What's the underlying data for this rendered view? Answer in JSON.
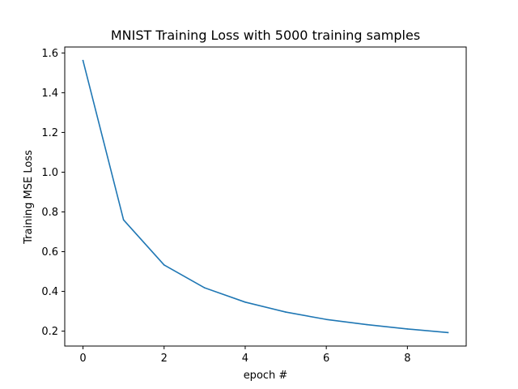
{
  "chart_data": {
    "type": "line",
    "title": "MNIST Training Loss with 5000 training samples",
    "xlabel": "epoch #",
    "ylabel": "Training MSE Loss",
    "x": [
      0,
      1,
      2,
      3,
      4,
      5,
      6,
      7,
      8,
      9
    ],
    "series": [
      {
        "values": [
          1.562,
          0.76,
          0.533,
          0.418,
          0.346,
          0.296,
          0.259,
          0.233,
          0.211,
          0.193
        ],
        "color": "#1f77b4"
      }
    ],
    "xlim": [
      -0.45,
      9.45
    ],
    "ylim": [
      0.125,
      1.63
    ],
    "xticks": [
      0,
      2,
      4,
      6,
      8
    ],
    "xtick_labels": [
      "0",
      "2",
      "4",
      "6",
      "8"
    ],
    "yticks": [
      0.2,
      0.4,
      0.6,
      0.8,
      1.0,
      1.2,
      1.4,
      1.6
    ],
    "ytick_labels": [
      "0.2",
      "0.4",
      "0.6",
      "0.8",
      "1.0",
      "1.2",
      "1.4",
      "1.6"
    ],
    "grid": false,
    "legend": false
  }
}
